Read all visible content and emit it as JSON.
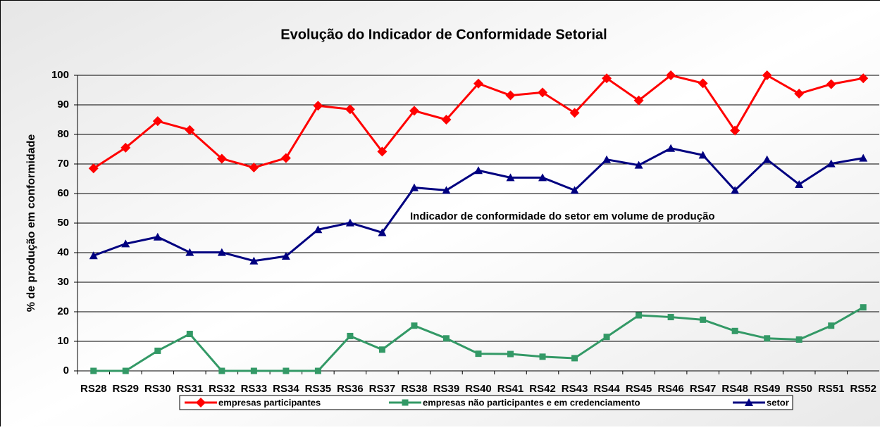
{
  "chart_data": {
    "type": "line",
    "title": "Evolução do Indicador de Conformidade Setorial",
    "y_label": "% de produção em conformidade",
    "annotation": "Indicador de conformidade do setor em volume de produção",
    "categories": [
      "RS28",
      "RS29",
      "RS30",
      "RS31",
      "RS32",
      "RS33",
      "RS34",
      "RS35",
      "RS36",
      "RS37",
      "RS38",
      "RS39",
      "RS40",
      "RS41",
      "RS42",
      "RS43",
      "RS44",
      "RS45",
      "RS46",
      "RS47",
      "RS48",
      "RS49",
      "RS50",
      "RS51",
      "RS52"
    ],
    "series": [
      {
        "name": "empresas participantes",
        "color": "#ff0000",
        "marker": "diamond",
        "values": [
          68.5,
          75.5,
          84.5,
          81.5,
          71.8,
          68.8,
          72,
          89.7,
          88.5,
          74.2,
          88,
          85,
          97.2,
          93.2,
          94.2,
          87.3,
          99,
          91.5,
          100,
          97.3,
          81.3,
          100,
          93.8,
          97,
          99
        ]
      },
      {
        "name": "empresas não participantes e em credenciamento",
        "color": "#339966",
        "marker": "square",
        "values": [
          0,
          0,
          6.8,
          12.5,
          0,
          0,
          0,
          0,
          11.8,
          7.2,
          15.3,
          11,
          5.8,
          5.7,
          4.8,
          4.3,
          11.5,
          18.8,
          18.2,
          17.3,
          13.5,
          11,
          10.6,
          15.3,
          21.5
        ]
      },
      {
        "name": "setor",
        "color": "#000080",
        "marker": "triangle",
        "values": [
          39,
          43,
          45.3,
          40.1,
          40.1,
          37.2,
          38.8,
          47.8,
          50.1,
          46.8,
          62,
          61.1,
          67.8,
          65.4,
          65.4,
          61.1,
          71.5,
          69.6,
          75.3,
          73,
          61.1,
          71.5,
          63.1,
          70.1,
          72
        ]
      }
    ],
    "ylim": [
      0,
      100
    ],
    "yticks": [
      0,
      10,
      20,
      30,
      40,
      50,
      60,
      70,
      80,
      90,
      100
    ],
    "grid": true,
    "legend": "bottom"
  }
}
